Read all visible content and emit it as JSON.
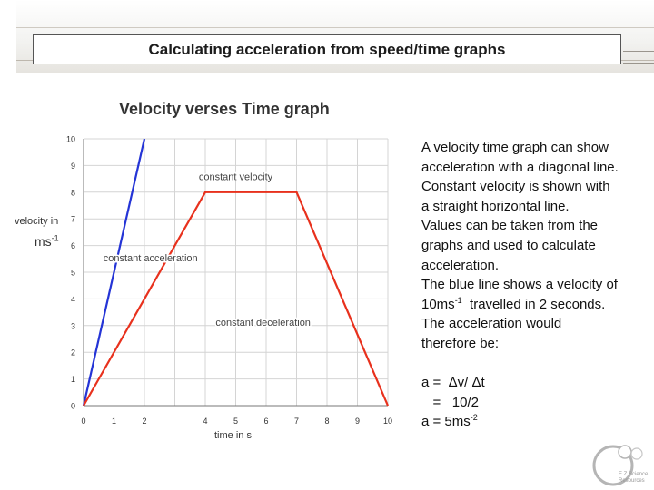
{
  "slide": {
    "title": "Calculating acceleration from speed/time graphs"
  },
  "chart_data": {
    "type": "line",
    "title": "Velocity verses Time graph",
    "xlabel": "time in s",
    "ylabel": "velocity in",
    "ylabel_unit": "ms",
    "ylabel_unit_sup": "-1",
    "xlim": [
      0,
      10
    ],
    "ylim": [
      0,
      10
    ],
    "grid": true,
    "x_ticks": [
      0,
      1,
      2,
      4,
      5,
      6,
      7,
      8,
      9,
      10
    ],
    "x_tick_labels": [
      "0",
      "1",
      "2",
      "4",
      "5",
      "6",
      "7",
      "8",
      "9",
      "10"
    ],
    "y_ticks": [
      0,
      1,
      2,
      3,
      4,
      5,
      6,
      7,
      8,
      9,
      10
    ],
    "y_tick_labels": [
      "0",
      "1",
      "2",
      "3",
      "4",
      "5",
      "6",
      "7",
      "8",
      "9",
      "10"
    ],
    "series": [
      {
        "color": "#2434d6",
        "x": [
          0,
          2
        ],
        "y": [
          0,
          10
        ]
      },
      {
        "color": "#e8311d",
        "x": [
          0,
          4,
          7,
          10
        ],
        "y": [
          0,
          8,
          8,
          0
        ]
      }
    ],
    "annotations": [
      {
        "text": "constant velocity",
        "x": 5.0,
        "y": 8.45
      },
      {
        "text": "constant acceleration",
        "x": 2.2,
        "y": 5.4
      },
      {
        "text": "constant deceleration",
        "x": 5.9,
        "y": 3.0
      }
    ]
  },
  "text_panel": {
    "lines": [
      "A velocity time graph can show",
      "acceleration with a diagonal line.",
      "Constant velocity is shown with",
      "a straight horizontal line.",
      "Values can be taken from the",
      "graphs and used to calculate",
      "acceleration.",
      "The blue line shows a velocity of"
    ],
    "velocity_value": "10ms",
    "velocity_sup": "-1",
    "velocity_tail": "  travelled in 2 seconds.",
    "after_lines": [
      "The acceleration would",
      "therefore be:"
    ],
    "eq1": "a =  Δv/ Δt",
    "eq2": "   =   10/2",
    "eq3": "a = 5ms",
    "eq3_sup": "-2"
  },
  "logo": {
    "text_line1": "E Z Science",
    "text_line2": "Resources"
  },
  "colors": {
    "blue_series": "#2434d6",
    "red_series": "#e8311d",
    "grid": "#d4d4d4"
  }
}
